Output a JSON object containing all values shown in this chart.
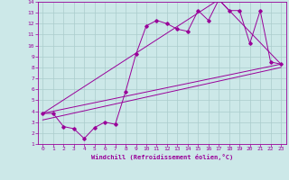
{
  "xlabel": "Windchill (Refroidissement éolien,°C)",
  "background_color": "#cce8e8",
  "line_color": "#990099",
  "grid_color": "#aacccc",
  "xlim": [
    -0.5,
    23.5
  ],
  "ylim": [
    1,
    14
  ],
  "xticks": [
    0,
    1,
    2,
    3,
    4,
    5,
    6,
    7,
    8,
    9,
    10,
    11,
    12,
    13,
    14,
    15,
    16,
    17,
    18,
    19,
    20,
    21,
    22,
    23
  ],
  "yticks": [
    1,
    2,
    3,
    4,
    5,
    6,
    7,
    8,
    9,
    10,
    11,
    12,
    13,
    14
  ],
  "data_x": [
    0,
    1,
    2,
    3,
    4,
    5,
    6,
    7,
    8,
    9,
    10,
    11,
    12,
    13,
    14,
    15,
    16,
    17,
    18,
    19,
    20,
    21,
    22,
    23
  ],
  "data_y": [
    3.8,
    3.8,
    2.6,
    2.4,
    1.5,
    2.5,
    3.0,
    2.8,
    5.8,
    9.2,
    11.8,
    12.3,
    12.0,
    11.5,
    11.3,
    13.2,
    12.3,
    14.2,
    13.2,
    13.2,
    10.2,
    13.2,
    8.5,
    8.3
  ],
  "line1_x": [
    0,
    23
  ],
  "line1_y": [
    3.8,
    8.3
  ],
  "line2_x": [
    0,
    17,
    23
  ],
  "line2_y": [
    3.8,
    14.2,
    8.3
  ],
  "line3_x": [
    0,
    23
  ],
  "line3_y": [
    3.2,
    8.0
  ],
  "marker_style": "D",
  "marker_size": 1.8,
  "line_width": 0.7
}
